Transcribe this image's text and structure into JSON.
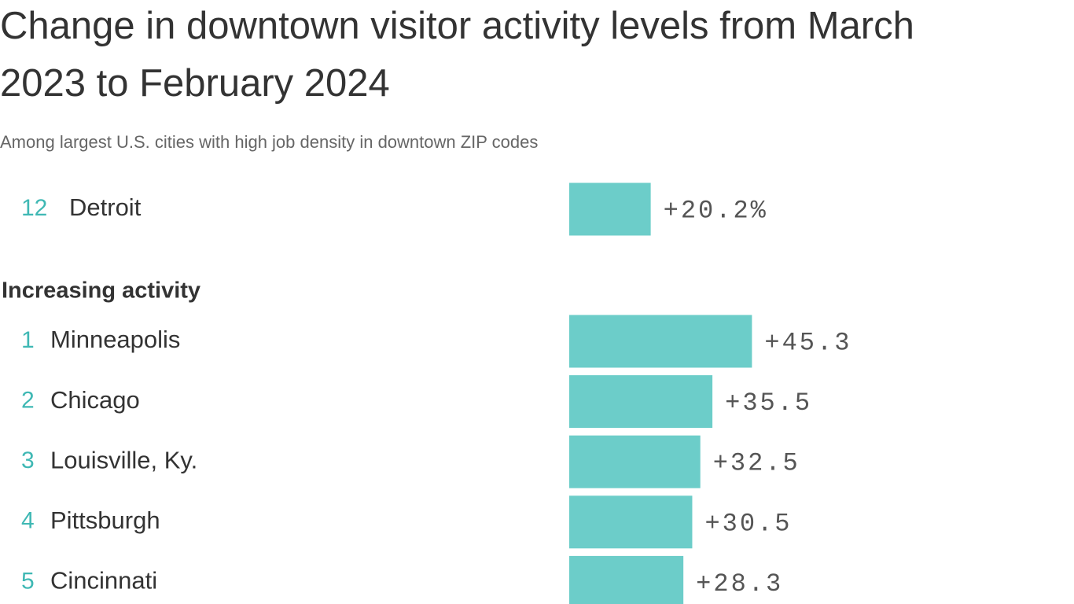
{
  "chart_data": {
    "type": "bar",
    "title": "Change in downtown visitor activity levels from March 2023 to February 2024",
    "subtitle": "Among largest U.S. cities with high job density in downtown ZIP codes",
    "color": "#6ccdc9",
    "rank_color": "#3fb8b4",
    "highlight": {
      "rank": 12,
      "category": "Detroit",
      "value": 20.2,
      "value_label": "+20.2%"
    },
    "section": {
      "title": "Increasing activity",
      "ranks": [
        1,
        2,
        3,
        4,
        5
      ],
      "categories": [
        "Minneapolis",
        "Chicago",
        "Louisville, Ky.",
        "Pittsburgh",
        "Cincinnati"
      ],
      "values": [
        45.3,
        35.5,
        32.5,
        30.5,
        28.3
      ],
      "value_labels": [
        "+45.3",
        "+35.5",
        "+32.5",
        "+30.5",
        "+28.3"
      ]
    }
  }
}
